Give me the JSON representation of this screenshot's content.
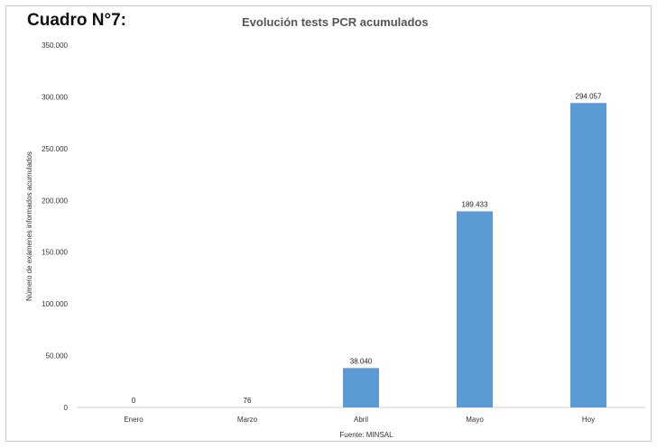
{
  "header": {
    "label": "Cuadro N°7:"
  },
  "chart_data": {
    "type": "bar",
    "title": "Evolución tests PCR acumulados",
    "xlabel": "Fuente: MINSAL",
    "ylabel": "Número de exámenes informados acumulados",
    "categories": [
      "Enero",
      "Marzo",
      "Abril",
      "Mayo",
      "Hoy"
    ],
    "values": [
      0,
      76,
      38040,
      189433,
      294057
    ],
    "value_labels": [
      "0",
      "76",
      "38.040",
      "189.433",
      "294.057"
    ],
    "ylim": [
      0,
      350000
    ],
    "yticks": [
      0,
      50000,
      100000,
      150000,
      200000,
      250000,
      300000,
      350000
    ],
    "ytick_labels": [
      "0",
      "50.000",
      "100.000",
      "150.000",
      "200.000",
      "250.000",
      "300.000",
      "350.000"
    ],
    "grid": false,
    "bar_color": "#5b9bd5"
  }
}
